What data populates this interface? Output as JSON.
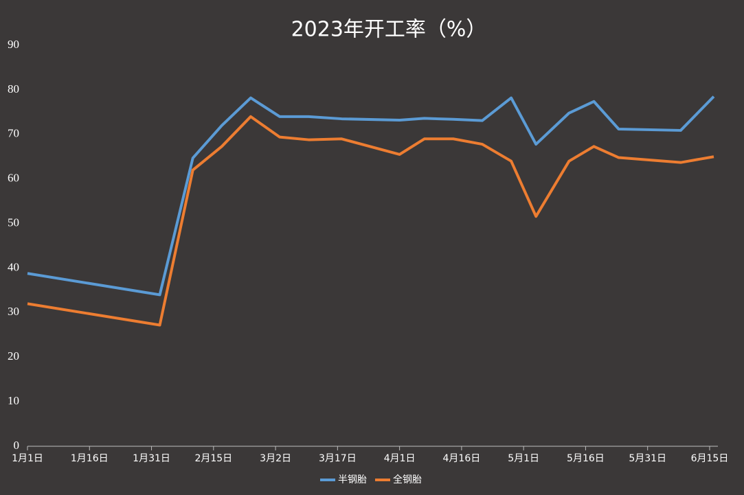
{
  "chart_data": {
    "type": "line",
    "title": "2023年开工率（%）",
    "x": [
      "2023-01-01",
      "2023-02-02",
      "2023-02-10",
      "2023-02-17",
      "2023-02-24",
      "2023-03-03",
      "2023-03-10",
      "2023-03-18",
      "2023-04-01",
      "2023-04-07",
      "2023-04-14",
      "2023-04-21",
      "2023-04-28",
      "2023-05-04",
      "2023-05-12",
      "2023-05-18",
      "2023-05-24",
      "2023-06-08",
      "2023-06-16"
    ],
    "series": [
      {
        "name": "半钢胎",
        "color": "#5b9bd5",
        "values": [
          38.8,
          34,
          64.7,
          72,
          78.2,
          74,
          74,
          73.5,
          73.2,
          73.6,
          73.4,
          73.1,
          78.2,
          67.8,
          74.8,
          77.4,
          71.2,
          70.9,
          78.5
        ]
      },
      {
        "name": "全钢胎",
        "color": "#ed7d31",
        "values": [
          32,
          27.2,
          62,
          67.3,
          74,
          69.4,
          68.8,
          69,
          65.5,
          69,
          69,
          67.8,
          64,
          51.6,
          64,
          67.3,
          64.8,
          63.7,
          65
        ]
      }
    ],
    "xlim": [
      "2023-01-01",
      "2023-06-17"
    ],
    "xticks": [
      {
        "value": "2023-01-01",
        "label": "1月1日"
      },
      {
        "value": "2023-01-16",
        "label": "1月16日"
      },
      {
        "value": "2023-01-31",
        "label": "1月31日"
      },
      {
        "value": "2023-02-15",
        "label": "2月15日"
      },
      {
        "value": "2023-03-02",
        "label": "3月2日"
      },
      {
        "value": "2023-03-17",
        "label": "3月17日"
      },
      {
        "value": "2023-04-01",
        "label": "4月1日"
      },
      {
        "value": "2023-04-16",
        "label": "4月16日"
      },
      {
        "value": "2023-05-01",
        "label": "5月1日"
      },
      {
        "value": "2023-05-16",
        "label": "5月16日"
      },
      {
        "value": "2023-05-31",
        "label": "5月31日"
      },
      {
        "value": "2023-06-15",
        "label": "6月15日"
      }
    ],
    "ylim": [
      0,
      90
    ],
    "yticks": [
      0,
      10,
      20,
      30,
      40,
      50,
      60,
      70,
      80,
      90
    ],
    "grid": false,
    "legend": "bottom"
  }
}
